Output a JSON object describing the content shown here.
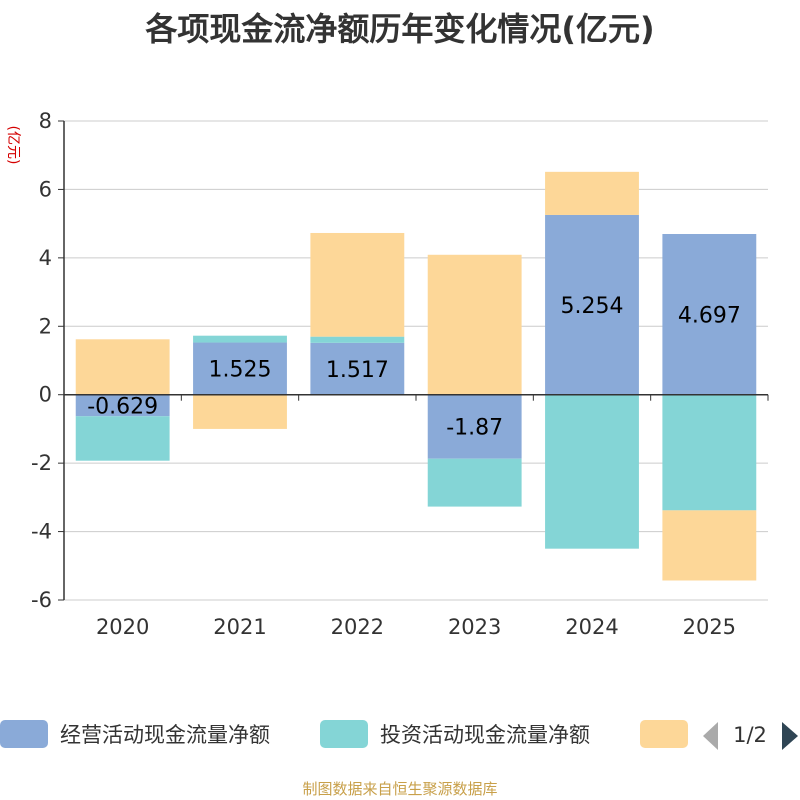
{
  "chart_data": {
    "type": "bar",
    "stacked": true,
    "title": "各项现金流净额历年变化情况(亿元)",
    "ylabel": "(亿元)",
    "xlabel": "",
    "ylim": [
      -6,
      8
    ],
    "yticks": [
      -6,
      -4,
      -2,
      0,
      2,
      4,
      6,
      8
    ],
    "categories": [
      "2020",
      "2021",
      "2022",
      "2023",
      "2024",
      "2025"
    ],
    "series": [
      {
        "name": "经营活动现金流量净额",
        "color": "#8aaad8",
        "values": [
          -0.629,
          1.525,
          1.517,
          -1.87,
          5.254,
          4.697
        ],
        "labels": [
          "-0.629",
          "1.525",
          "1.517",
          "-1.87",
          "5.254",
          "4.697"
        ]
      },
      {
        "name": "投资活动现金流量净额",
        "color": "#84d5d6",
        "values": [
          -1.3,
          0.2,
          0.18,
          -1.4,
          -4.5,
          -3.38
        ]
      },
      {
        "name": "",
        "color": "#fdd798",
        "values": [
          1.62,
          -1.0,
          3.03,
          4.09,
          1.26,
          -2.05
        ]
      }
    ],
    "legend": {
      "position": "bottom",
      "page": "1/2"
    }
  },
  "footer": {
    "source": "制图数据来自恒生聚源数据库"
  }
}
